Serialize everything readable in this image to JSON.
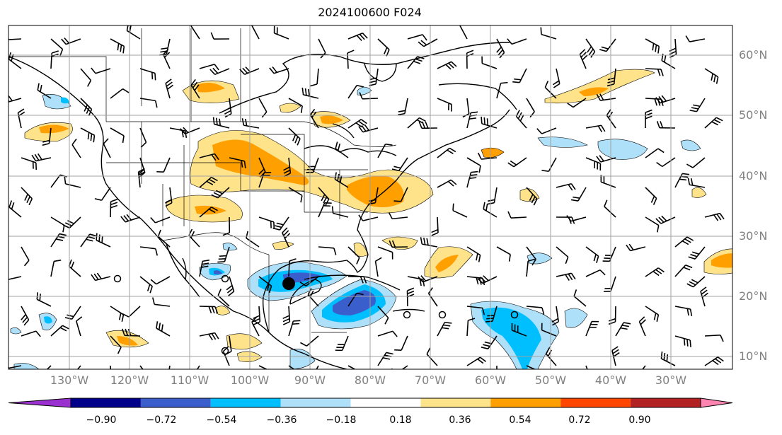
{
  "title": "2024100600 F024",
  "lat_labels": [
    "60°N",
    "50°N",
    "40°N",
    "30°N",
    "20°N",
    "10°N"
  ],
  "lon_labels": [
    "130°W",
    "120°W",
    "110°W",
    "100°W",
    "90°W",
    "80°W",
    "70°W",
    "60°W",
    "50°W",
    "40°W",
    "30°W"
  ],
  "colorbar": {
    "ticks": [
      "−0.90",
      "−0.72",
      "−0.54",
      "−0.36",
      "−0.18",
      "0.18",
      "0.36",
      "0.54",
      "0.72",
      "0.90"
    ],
    "colors": [
      "#9b30d0",
      "#00008b",
      "#3a5fcd",
      "#00bfff",
      "#aee0fa",
      "#ffffff",
      "#ffe38a",
      "#ff9f00",
      "#ff4500",
      "#b22222",
      "#ff85b0"
    ]
  }
}
